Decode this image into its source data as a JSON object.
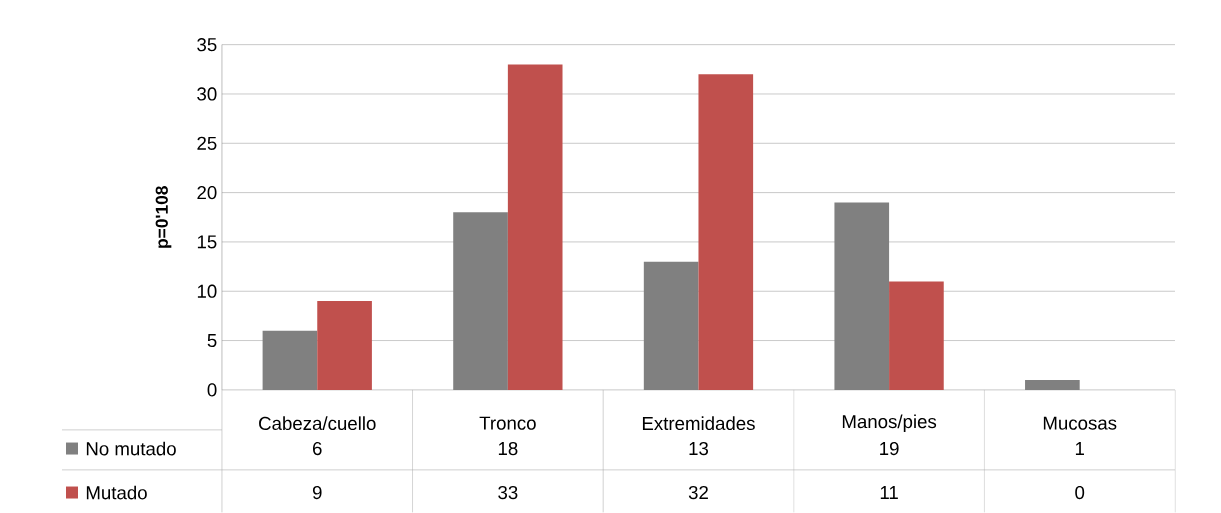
{
  "chart_data": {
    "type": "bar",
    "ylabel": "p=0'108",
    "categories": [
      "Cabeza/cuello",
      "Tronco",
      "Extremidades",
      "Manos/pies",
      "Mucosas"
    ],
    "series": [
      {
        "name": "No mutado",
        "color": "#808080",
        "values": [
          6,
          18,
          13,
          19,
          1
        ]
      },
      {
        "name": "Mutado",
        "color": "#c0504d",
        "values": [
          9,
          33,
          32,
          11,
          0
        ]
      }
    ],
    "ylim": [
      0,
      35
    ],
    "yticks": [
      0,
      5,
      10,
      15,
      20,
      25,
      30,
      35
    ],
    "grid": "y",
    "legend": "bottom",
    "data_labels": true
  }
}
